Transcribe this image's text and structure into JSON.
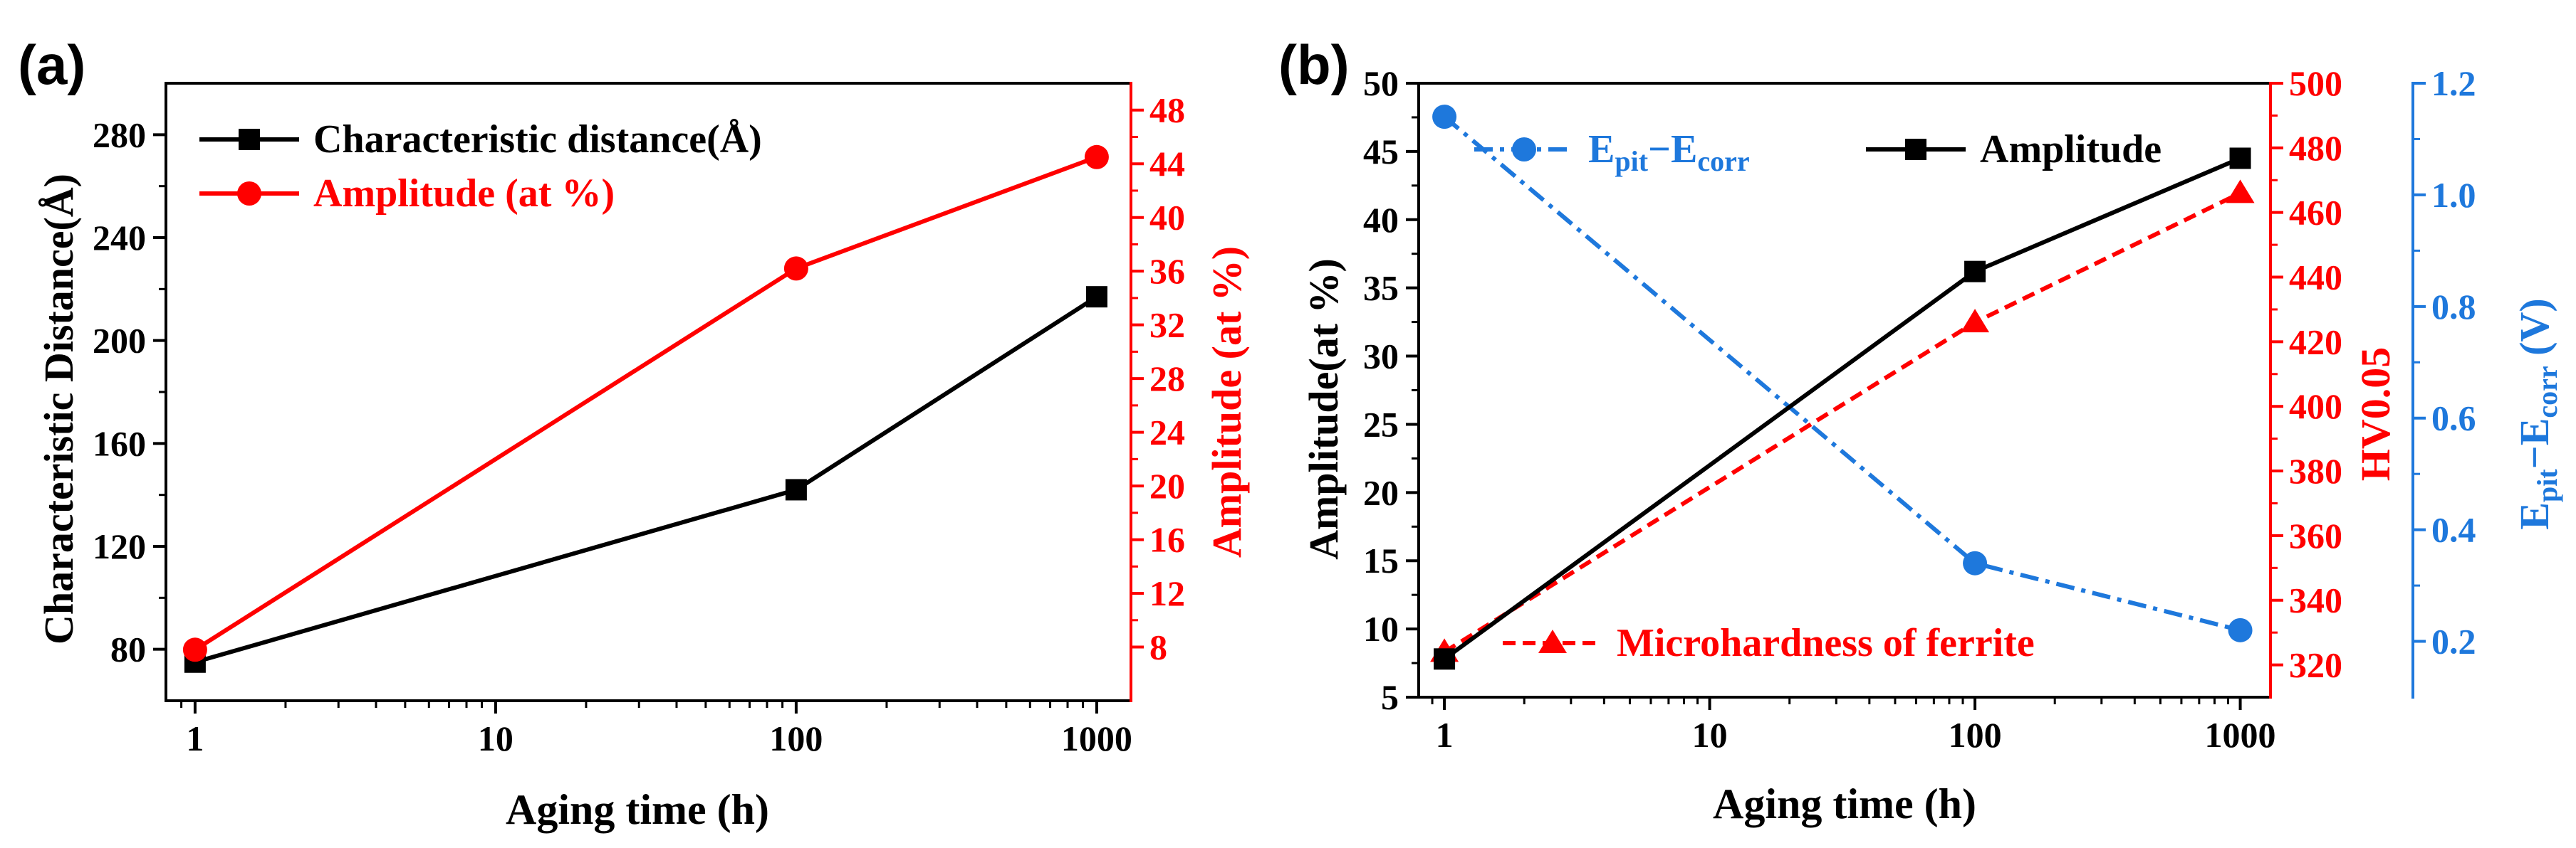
{
  "figure": {
    "panels": [
      {
        "label": "(a)"
      },
      {
        "label": "(b)"
      }
    ]
  },
  "colors": {
    "black": "#000000",
    "red": "#ff0000",
    "blue": "#1e78dc"
  },
  "chart_data": [
    {
      "type": "line",
      "panel": "(a)",
      "xlabel": "Aging time (h)",
      "x_scale": "log",
      "x_ticks": [
        1,
        10,
        100,
        1000
      ],
      "x_tick_labels": [
        "1",
        "10",
        "100",
        "1000"
      ],
      "xlim": [
        0.8,
        1300
      ],
      "ylabel": "Characteristic Distance(Å)",
      "ylim": [
        60,
        300
      ],
      "y_ticks": [
        80,
        120,
        160,
        200,
        240,
        280
      ],
      "y_tick_labels": [
        "80",
        "120",
        "160",
        "200",
        "240",
        "280"
      ],
      "ylabel_right": "Amplitude (at %)",
      "ylim_right": [
        4,
        50
      ],
      "y_ticks_right": [
        8,
        12,
        16,
        20,
        24,
        28,
        32,
        36,
        40,
        44,
        48
      ],
      "y_tick_labels_right": [
        "8",
        "12",
        "16",
        "20",
        "24",
        "28",
        "32",
        "36",
        "40",
        "44",
        "48"
      ],
      "legend_position": "top-left",
      "series": [
        {
          "name": "Characteristic distance(Å)",
          "axis": "left",
          "color": "#000000",
          "marker": "square",
          "x": [
            1,
            100,
            1000
          ],
          "values": [
            75,
            142,
            217
          ]
        },
        {
          "name": "Amplitude (at %)",
          "axis": "right",
          "color": "#ff0000",
          "marker": "circle",
          "x": [
            1,
            100,
            1000
          ],
          "values": [
            7.8,
            36.2,
            44.5
          ]
        }
      ]
    },
    {
      "type": "line",
      "panel": "(b)",
      "xlabel": "Aging time (h)",
      "x_scale": "log",
      "x_ticks": [
        1,
        10,
        100,
        1000
      ],
      "x_tick_labels": [
        "1",
        "10",
        "100",
        "1000"
      ],
      "xlim": [
        0.8,
        1300
      ],
      "ylabel": "Amplitude(at %)",
      "ylim": [
        5,
        50
      ],
      "y_ticks": [
        5,
        10,
        15,
        20,
        25,
        30,
        35,
        40,
        45,
        50
      ],
      "y_tick_labels": [
        "5",
        "10",
        "15",
        "20",
        "25",
        "30",
        "35",
        "40",
        "45",
        "50"
      ],
      "ylabel_right": "HV0.05",
      "ylim_right": [
        310,
        500
      ],
      "y_ticks_right": [
        320,
        340,
        360,
        380,
        400,
        420,
        440,
        460,
        480,
        500
      ],
      "y_tick_labels_right": [
        "320",
        "340",
        "360",
        "380",
        "400",
        "420",
        "440",
        "460",
        "480",
        "500"
      ],
      "ylabel_right2": {
        "main": "E",
        "sub1": "pit",
        "mid": "−E",
        "sub2": "corr",
        "tail": " (V)"
      },
      "ylim_right2": [
        0.1,
        1.2
      ],
      "y_ticks_right2": [
        0.2,
        0.4,
        0.6,
        0.8,
        1.0,
        1.2
      ],
      "y_tick_labels_right2": [
        "0.2",
        "0.4",
        "0.6",
        "0.8",
        "1.0",
        "1.2"
      ],
      "series": [
        {
          "name": "Amplitude",
          "axis": "left",
          "color": "#000000",
          "marker": "square",
          "line": "solid",
          "x": [
            1,
            100,
            1000
          ],
          "values": [
            7.8,
            36.2,
            44.5
          ]
        },
        {
          "name": "Microhardness of ferrite",
          "axis": "right",
          "color": "#ff0000",
          "marker": "triangle",
          "line": "dashed",
          "x": [
            1,
            100,
            1000
          ],
          "values": [
            324,
            426,
            466
          ]
        },
        {
          "name": "Epit−Ecorr",
          "name_parts": {
            "main": "E",
            "sub1": "pit",
            "mid": "−E",
            "sub2": "corr"
          },
          "axis": "right2",
          "color": "#1e78dc",
          "marker": "circle",
          "line": "dashdot",
          "x": [
            1,
            100,
            1000
          ],
          "values": [
            1.14,
            0.34,
            0.22
          ]
        }
      ]
    }
  ]
}
